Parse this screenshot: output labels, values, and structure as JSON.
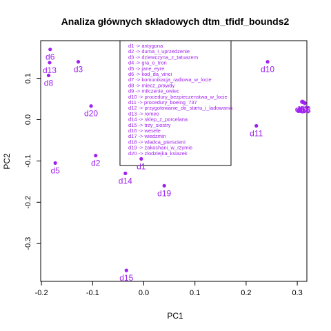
{
  "chart_data": {
    "type": "scatter",
    "title": "Analiza głównych składowych dtm_tfidf_bounds2",
    "xlabel": "PC1",
    "ylabel": "PC2",
    "xlim": [
      -0.2,
      0.32
    ],
    "ylim": [
      -0.38,
      0.16
    ],
    "xticks": [
      -0.2,
      -0.1,
      0.0,
      0.1,
      0.2,
      0.3
    ],
    "xtick_labels": [
      "-0.2",
      "-0.1",
      "0.0",
      "0.1",
      "0.2",
      "0.3"
    ],
    "yticks": [
      -0.3,
      -0.2,
      -0.1,
      0.0,
      0.1
    ],
    "ytick_labels": [
      "-0.3",
      "-0.2",
      "-0.1",
      "0.0",
      "0.1"
    ],
    "grid": false,
    "legend_position": "top-center",
    "point_color": "#a020f0",
    "points": [
      {
        "label": "d1",
        "x": -0.005,
        "y": -0.095
      },
      {
        "label": "d2",
        "x": -0.094,
        "y": -0.087
      },
      {
        "label": "d3",
        "x": -0.128,
        "y": 0.14
      },
      {
        "label": "d4",
        "x": 0.315,
        "y": 0.04
      },
      {
        "label": "d5",
        "x": -0.173,
        "y": -0.105
      },
      {
        "label": "d6",
        "x": -0.183,
        "y": 0.17
      },
      {
        "label": "d7",
        "x": 0.31,
        "y": 0.044
      },
      {
        "label": "d8",
        "x": -0.186,
        "y": 0.107
      },
      {
        "label": "d9",
        "x": 0.3105,
        "y": 0.042
      },
      {
        "label": "d10",
        "x": 0.242,
        "y": 0.14
      },
      {
        "label": "d11",
        "x": 0.22,
        "y": -0.015
      },
      {
        "label": "d12",
        "x": 0.309,
        "y": 0.043
      },
      {
        "label": "d13",
        "x": -0.184,
        "y": 0.138
      },
      {
        "label": "d14",
        "x": -0.036,
        "y": -0.13
      },
      {
        "label": "d15",
        "x": -0.034,
        "y": -0.365
      },
      {
        "label": "d16",
        "x": 0.312,
        "y": 0.041
      },
      {
        "label": "d17",
        "x": 0.311,
        "y": 0.043
      },
      {
        "label": "d18",
        "x": 0.313,
        "y": 0.042
      },
      {
        "label": "d19",
        "x": 0.04,
        "y": -0.16
      },
      {
        "label": "d20",
        "x": -0.103,
        "y": 0.033
      }
    ],
    "legend": [
      "d1 -> antygona",
      "d2 -> duma_i_uprzedzenie",
      "d3 -> dziewczyna_z_tatuazem",
      "d4 -> gra_o_tron",
      "d5 -> jane_eyre",
      "d6 -> kod_da_vinci",
      "d7 -> komunikacja_radiowa_w_locie",
      "d8 -> miecz_prawdy",
      "d9 -> milczenie_owiec",
      "d10 -> procedury_bezpieczenstwa_w_locie",
      "d11 -> procedury_boeing_737",
      "d12 -> przygotowanie_do_startu_i_ladowania",
      "d13 -> romeo",
      "d14 -> sklep_z_porcelana",
      "d15 -> trzy_siostry",
      "d16 -> wesele",
      "d17 -> wiedzmin",
      "d18 -> wladca_pierscieni",
      "d19 -> zakochani_w_rzymie",
      "d20 -> zlodziejka_ksiazek"
    ]
  }
}
